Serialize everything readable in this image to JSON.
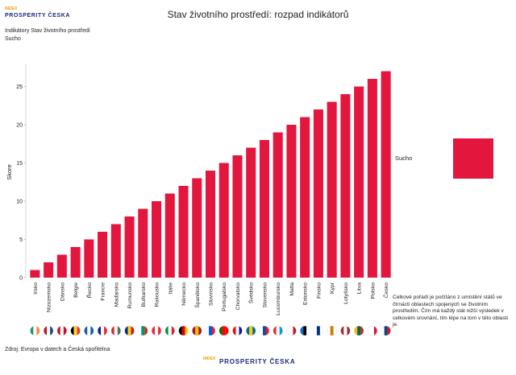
{
  "chart_data": {
    "type": "bar",
    "title": "Stav životního prostředí: rozpad indikátorů",
    "subtitle": [
      "Indikátory Stav životního prostředí",
      "Sucho"
    ],
    "y_label": "Skore",
    "logo": {
      "small": "INDEX",
      "main": "PROSPERITY ČESKA"
    },
    "categories": [
      "Irsko",
      "Nizozemsko",
      "Dánsko",
      "Belgie",
      "Řecko",
      "Francie",
      "Maďarsko",
      "Rumunsko",
      "Bulharsko",
      "Rakousko",
      "Itálie",
      "Německo",
      "Španělsko",
      "Slovinsko",
      "Portugalsko",
      "Chorvatsko",
      "Švédsko",
      "Slovensko",
      "Lucembursko",
      "Malta",
      "Estonsko",
      "Finsko",
      "Kypr",
      "Lotyšsko",
      "Litva",
      "Polsko",
      "Česko"
    ],
    "series": [
      {
        "name": "Sucho",
        "color": "#e3173e",
        "values": [
          1,
          2,
          3,
          4,
          5,
          6,
          7,
          8,
          9,
          10,
          11,
          12,
          13,
          14,
          15,
          16,
          17,
          18,
          19,
          20,
          21,
          22,
          23,
          24,
          25,
          26,
          27
        ]
      }
    ],
    "ylim": [
      0,
      28
    ],
    "yticks": [
      0,
      5,
      10,
      15,
      20,
      25
    ],
    "grid": false,
    "note": "Celkové pořadí je počítáno z umístění států ve čtrnácti oblastech spojených se životním prostředím. Čím má každý stát nižší výsledek v celkovém srovnání, tím lépe na tom v této oblasti je.",
    "source": "Zdroj: Evropa v datech a Česká spořitelna"
  }
}
